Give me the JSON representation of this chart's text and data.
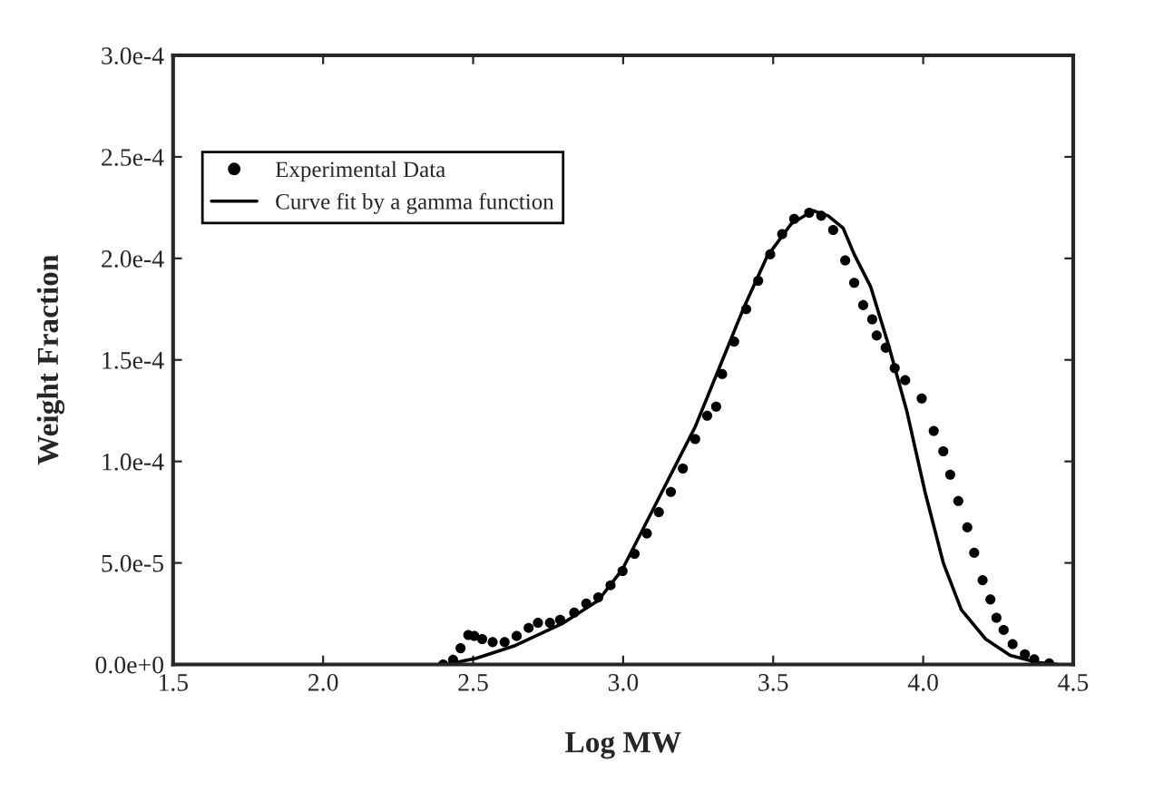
{
  "chart_data": {
    "type": "scatter",
    "xlabel": "Log MW",
    "ylabel": "Weight Fraction",
    "xlim": [
      1.5,
      4.5
    ],
    "xticks": [
      1.5,
      {
        "value": 2,
        "label": "2.0"
      },
      2.5,
      {
        "value": 3,
        "label": "3.0"
      },
      3.5,
      {
        "value": 4,
        "label": "4.0"
      },
      4.5
    ],
    "ylim": [
      0,
      0.0003
    ],
    "yticks": [
      {
        "value": 0,
        "label": "0.0e+0"
      },
      {
        "value": 5e-05,
        "label": "5.0e-5"
      },
      {
        "value": 0.0001,
        "label": "1.0e-4"
      },
      {
        "value": 0.00015,
        "label": "1.5e-4"
      },
      {
        "value": 0.0002,
        "label": "2.0e-4"
      },
      {
        "value": 0.00025,
        "label": "2.5e-4"
      },
      {
        "value": 0.0003,
        "label": "3.0e-4"
      }
    ],
    "legend": "top left",
    "grid": false,
    "series": [
      {
        "name": "Experimental Data",
        "marker": "circle",
        "color": "#000000",
        "x": [
          2.4,
          2.433,
          2.458,
          2.484,
          2.504,
          2.53,
          2.565,
          2.605,
          2.645,
          2.685,
          2.716,
          2.756,
          2.79,
          2.837,
          2.877,
          2.917,
          2.958,
          2.998,
          3.038,
          3.079,
          3.119,
          3.159,
          3.199,
          3.24,
          3.28,
          3.31,
          3.33,
          3.37,
          3.41,
          3.45,
          3.49,
          3.53,
          3.57,
          3.62,
          3.66,
          3.7,
          3.74,
          3.77,
          3.8,
          3.83,
          3.845,
          3.875,
          3.905,
          3.94,
          3.995,
          4.035,
          4.067,
          4.09,
          4.117,
          4.147,
          4.17,
          4.198,
          4.224,
          4.244,
          4.268,
          4.298,
          4.339,
          4.37,
          4.42
        ],
        "values": [
          0,
          2.3e-06,
          8e-06,
          1.45e-05,
          1.4e-05,
          1.25e-05,
          1.1e-05,
          1.1e-05,
          1.4e-05,
          1.8e-05,
          2.05e-05,
          2.05e-05,
          2.2e-05,
          2.55e-05,
          3e-05,
          3.3e-05,
          3.9e-05,
          4.6e-05,
          5.45e-05,
          6.45e-05,
          7.5e-05,
          8.5e-05,
          9.65e-05,
          0.000111,
          0.0001225,
          0.000127,
          0.000143,
          0.000159,
          0.000175,
          0.000189,
          0.000202,
          0.000212,
          0.0002195,
          0.0002225,
          0.000221,
          0.000214,
          0.000199,
          0.000188,
          0.000177,
          0.00017,
          0.000162,
          0.000156,
          0.000146,
          0.00014,
          0.000131,
          0.000115,
          0.000105,
          9.35e-05,
          8.05e-05,
          6.75e-05,
          5.5e-05,
          4.15e-05,
          3.2e-05,
          2.3e-05,
          1.7e-05,
          1e-05,
          5e-06,
          2.5e-06,
          5e-07
        ]
      },
      {
        "name": "Curve fit by a gamma function",
        "type": "line",
        "line_style": "solid",
        "marker": "none",
        "color": "#000000",
        "x": [
          2.41,
          2.51,
          2.635,
          2.796,
          2.917,
          2.998,
          3.119,
          3.24,
          3.32,
          3.4,
          3.48,
          3.56,
          3.633,
          3.683,
          3.733,
          3.77,
          3.825,
          3.885,
          3.945,
          4.006,
          4.067,
          4.127,
          4.208,
          4.29,
          4.38,
          4.45
        ],
        "values": [
          0,
          3e-06,
          9e-06,
          2e-05,
          3.15e-05,
          4.7e-05,
          8.2e-05,
          0.000117,
          0.000146,
          0.000175,
          0.000201,
          0.000217,
          0.0002235,
          0.000221,
          0.000215,
          0.000202,
          0.000186,
          0.000157,
          0.000125,
          8.5e-05,
          5e-05,
          2.7e-05,
          1.25e-05,
          4.5e-06,
          1e-06,
          0
        ]
      }
    ]
  }
}
